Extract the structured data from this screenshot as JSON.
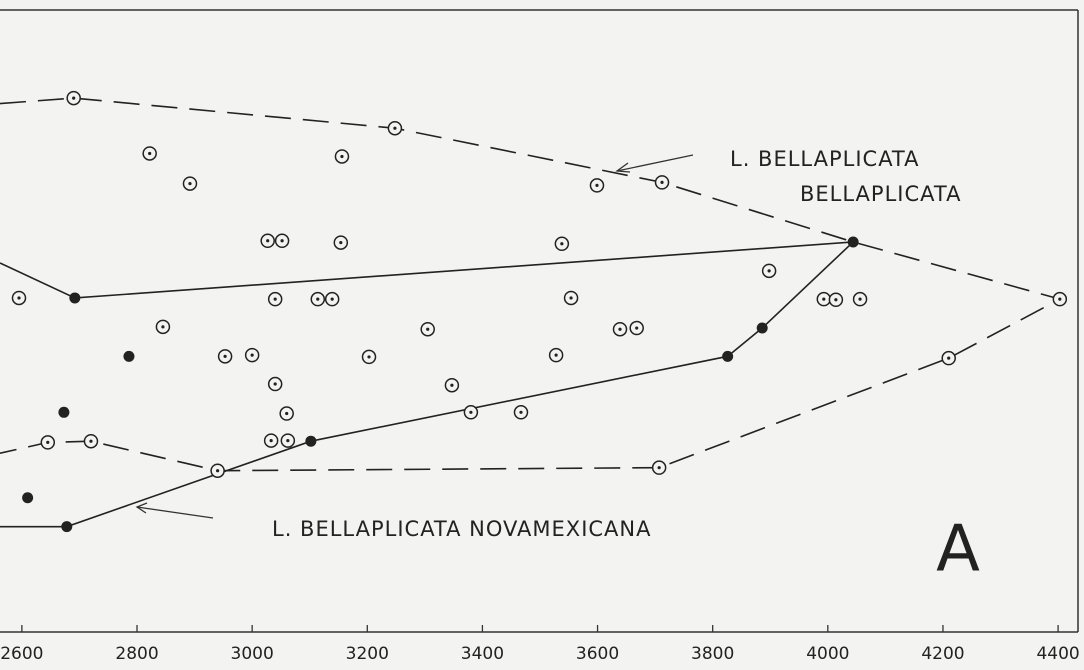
{
  "chart_data": {
    "type": "scatter",
    "xlim": [
      2562,
      4445
    ],
    "ylim": [
      0,
      105
    ],
    "xticks": [
      2600,
      2800,
      3000,
      3200,
      3400,
      3600,
      3800,
      4000,
      4200,
      4400
    ],
    "series": [
      {
        "marker": "open",
        "color": "#222",
        "x": [
          2690,
          3248,
          2822,
          3156,
          2892,
          3599,
          3712,
          3027,
          3052,
          3154,
          3538,
          3898,
          2595,
          3040,
          3114,
          3139,
          3554,
          3993,
          4014,
          4056,
          4403,
          2845,
          3305,
          3639,
          3668,
          2953,
          3000,
          3203,
          3528,
          4210,
          3040,
          3347,
          3060,
          3380,
          3467,
          2645,
          2720,
          3033,
          3062,
          2940,
          3707
        ],
        "values": [
          88.7,
          83.7,
          79.5,
          79,
          74.5,
          74.2,
          74.7,
          65,
          65,
          64.7,
          64.5,
          60,
          55.5,
          55.3,
          55.3,
          55.3,
          55.5,
          55.3,
          55.2,
          55.3,
          55.3,
          50.7,
          50.3,
          50.3,
          50.5,
          45.8,
          46,
          45.7,
          46,
          45.5,
          41.2,
          41,
          36.3,
          36.5,
          36.5,
          31.5,
          31.7,
          31.8,
          31.8,
          26.8,
          27.3
        ]
      },
      {
        "marker": "filled",
        "color": "#222",
        "x": [
          2692,
          2786,
          2673,
          3102,
          2610,
          2678,
          3826,
          3886,
          4044
        ],
        "values": [
          55.5,
          45.8,
          36.5,
          31.7,
          22.3,
          17.5,
          45.8,
          50.5,
          64.8
        ]
      }
    ],
    "outlines": [
      {
        "style": "dashed",
        "x": [
          2562,
          2690,
          3248,
          3712,
          4044,
          4403,
          4210,
          3707,
          2940,
          2720,
          2645,
          2562
        ],
        "values": [
          87.8,
          88.7,
          83.7,
          74.7,
          64.8,
          55.3,
          45.5,
          27.3,
          26.8,
          31.7,
          31.5,
          29.7
        ]
      },
      {
        "style": "solid",
        "x": [
          2562,
          2692,
          4044,
          3886,
          3826,
          3102,
          2678,
          2562
        ],
        "values": [
          61.3,
          55.5,
          64.8,
          50.5,
          45.8,
          31.7,
          17.5,
          17.5
        ]
      }
    ],
    "annotations": [
      "L. BELLAPLICATA",
      "BELLAPLICATA",
      "L. BELLAPLICATA NOVAMEXICANA",
      "A"
    ]
  }
}
